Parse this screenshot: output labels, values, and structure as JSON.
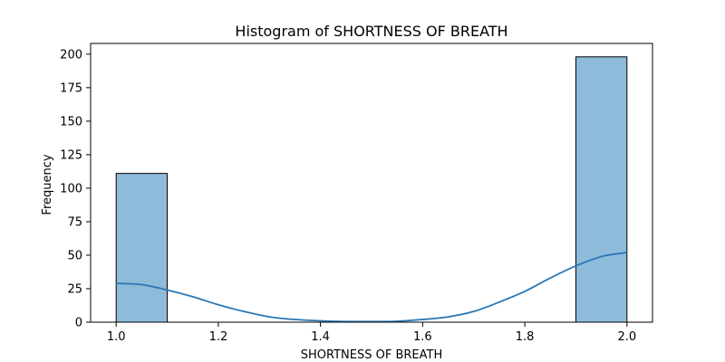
{
  "chart_data": {
    "type": "bar",
    "title": "Histogram of SHORTNESS OF BREATH",
    "xlabel": "SHORTNESS OF BREATH",
    "ylabel": "Frequency",
    "xlim": [
      0.95,
      2.05
    ],
    "ylim": [
      0,
      208
    ],
    "xticks": [
      1.0,
      1.2,
      1.4,
      1.6,
      1.8,
      2.0
    ],
    "xtick_labels": [
      "1.0",
      "1.2",
      "1.4",
      "1.6",
      "1.8",
      "2.0"
    ],
    "yticks": [
      0,
      25,
      50,
      75,
      100,
      125,
      150,
      175,
      200
    ],
    "ytick_labels": [
      "0",
      "25",
      "50",
      "75",
      "100",
      "125",
      "150",
      "175",
      "200"
    ],
    "bins": [
      {
        "x0": 1.0,
        "x1": 1.1,
        "value": 111
      },
      {
        "x0": 1.1,
        "x1": 1.2,
        "value": 0
      },
      {
        "x0": 1.2,
        "x1": 1.3,
        "value": 0
      },
      {
        "x0": 1.3,
        "x1": 1.4,
        "value": 0
      },
      {
        "x0": 1.4,
        "x1": 1.5,
        "value": 0
      },
      {
        "x0": 1.5,
        "x1": 1.6,
        "value": 0
      },
      {
        "x0": 1.6,
        "x1": 1.7,
        "value": 0
      },
      {
        "x0": 1.7,
        "x1": 1.8,
        "value": 0
      },
      {
        "x0": 1.8,
        "x1": 1.9,
        "value": 0
      },
      {
        "x0": 1.9,
        "x1": 2.0,
        "value": 198
      }
    ],
    "kde": {
      "x": [
        1.0,
        1.05,
        1.1,
        1.15,
        1.2,
        1.25,
        1.3,
        1.35,
        1.4,
        1.45,
        1.5,
        1.55,
        1.6,
        1.65,
        1.7,
        1.75,
        1.8,
        1.85,
        1.9,
        1.95,
        2.0
      ],
      "y": [
        29,
        28,
        24,
        19,
        13,
        8,
        4,
        2,
        1,
        0.5,
        0.5,
        0.7,
        2,
        4,
        8,
        15,
        23,
        33,
        42,
        49,
        52
      ]
    },
    "colors": {
      "bar_fill": "#8fbbdb",
      "bar_edge": "#000000",
      "kde_line": "#2a77b4"
    },
    "grid": false
  }
}
